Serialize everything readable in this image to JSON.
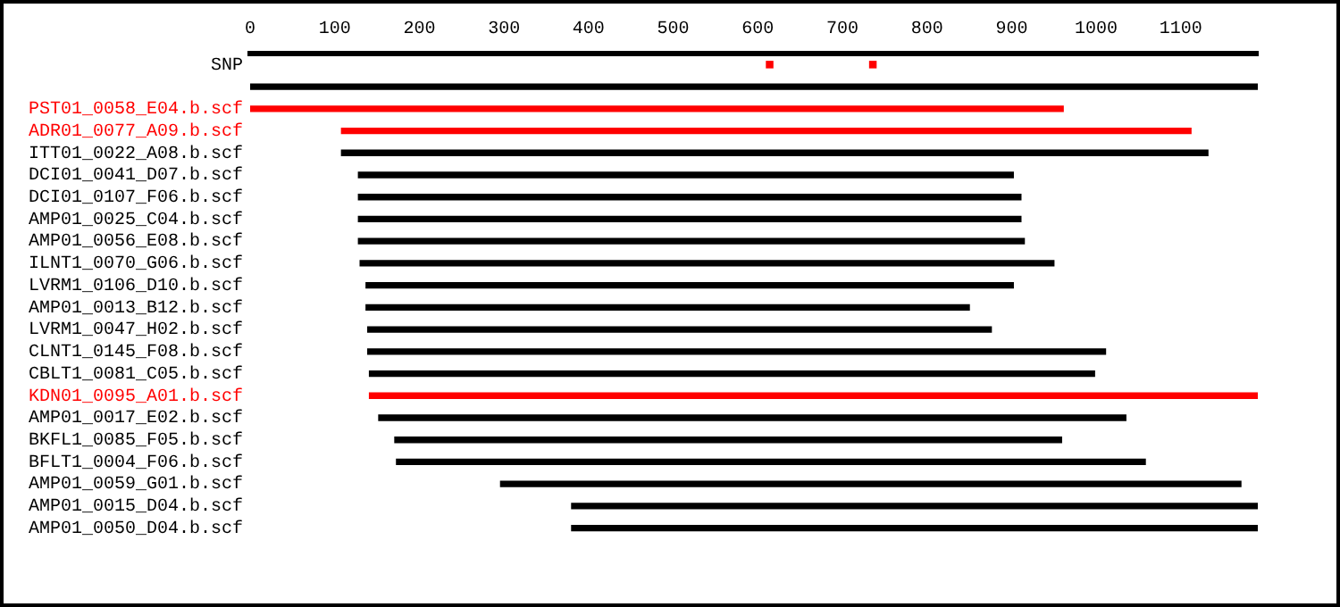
{
  "chart_data": {
    "type": "bar",
    "orientation": "horizontal",
    "categories": [
      "SNP",
      null,
      "PST01_0058_E04.b.scf",
      "ADR01_0077_A09.b.scf",
      "ITT01_0022_A08.b.scf",
      "DCI01_0041_D07.b.scf",
      "DCI01_0107_F06.b.scf",
      "AMP01_0025_C04.b.scf",
      "AMP01_0056_E08.b.scf",
      "ILNT1_0070_G06.b.scf",
      "LVRM1_0106_D10.b.scf",
      "AMP01_0013_B12.b.scf",
      "LVRM1_0047_H02.b.scf",
      "CLNT1_0145_F08.b.scf",
      "CBLT1_0081_C05.b.scf",
      "KDN01_0095_A01.b.scf",
      "AMP01_0017_E02.b.scf",
      "BKFL1_0085_F05.b.scf",
      "BFLT1_0004_F06.b.scf",
      "AMP01_0059_G01.b.scf",
      "AMP01_0015_D04.b.scf",
      "AMP01_0050_D04.b.scf"
    ],
    "series": [
      {
        "base": [
          null,
          0,
          0,
          108,
          108,
          128,
          128,
          128,
          128,
          130,
          137,
          137,
          139,
          139,
          141,
          141,
          152,
          171,
          173,
          296,
          380,
          380
        ],
        "values": [
          null,
          1191,
          961,
          1004,
          1024,
          774,
          783,
          783,
          787,
          820,
          765,
          713,
          737,
          872,
          857,
          1050,
          883,
          788,
          885,
          875,
          811,
          811
        ],
        "colors": [
          "#000000",
          "#000000",
          "#ff0000",
          "#ff0000",
          "#000000",
          "#000000",
          "#000000",
          "#000000",
          "#000000",
          "#000000",
          "#000000",
          "#000000",
          "#000000",
          "#000000",
          "#000000",
          "#ff0000",
          "#000000",
          "#000000",
          "#000000",
          "#000000",
          "#000000",
          "#000000"
        ]
      },
      {
        "type": "scatter",
        "x": [
          "SNP",
          "SNP"
        ],
        "values": [
          614,
          736
        ],
        "color": "#ff0000",
        "marker": "square"
      }
    ],
    "xlim": [
      0,
      1191
    ],
    "xticks": [
      0,
      100,
      200,
      300,
      400,
      500,
      600,
      700,
      800,
      900,
      1000,
      1100
    ],
    "grid": false,
    "legend": false
  }
}
